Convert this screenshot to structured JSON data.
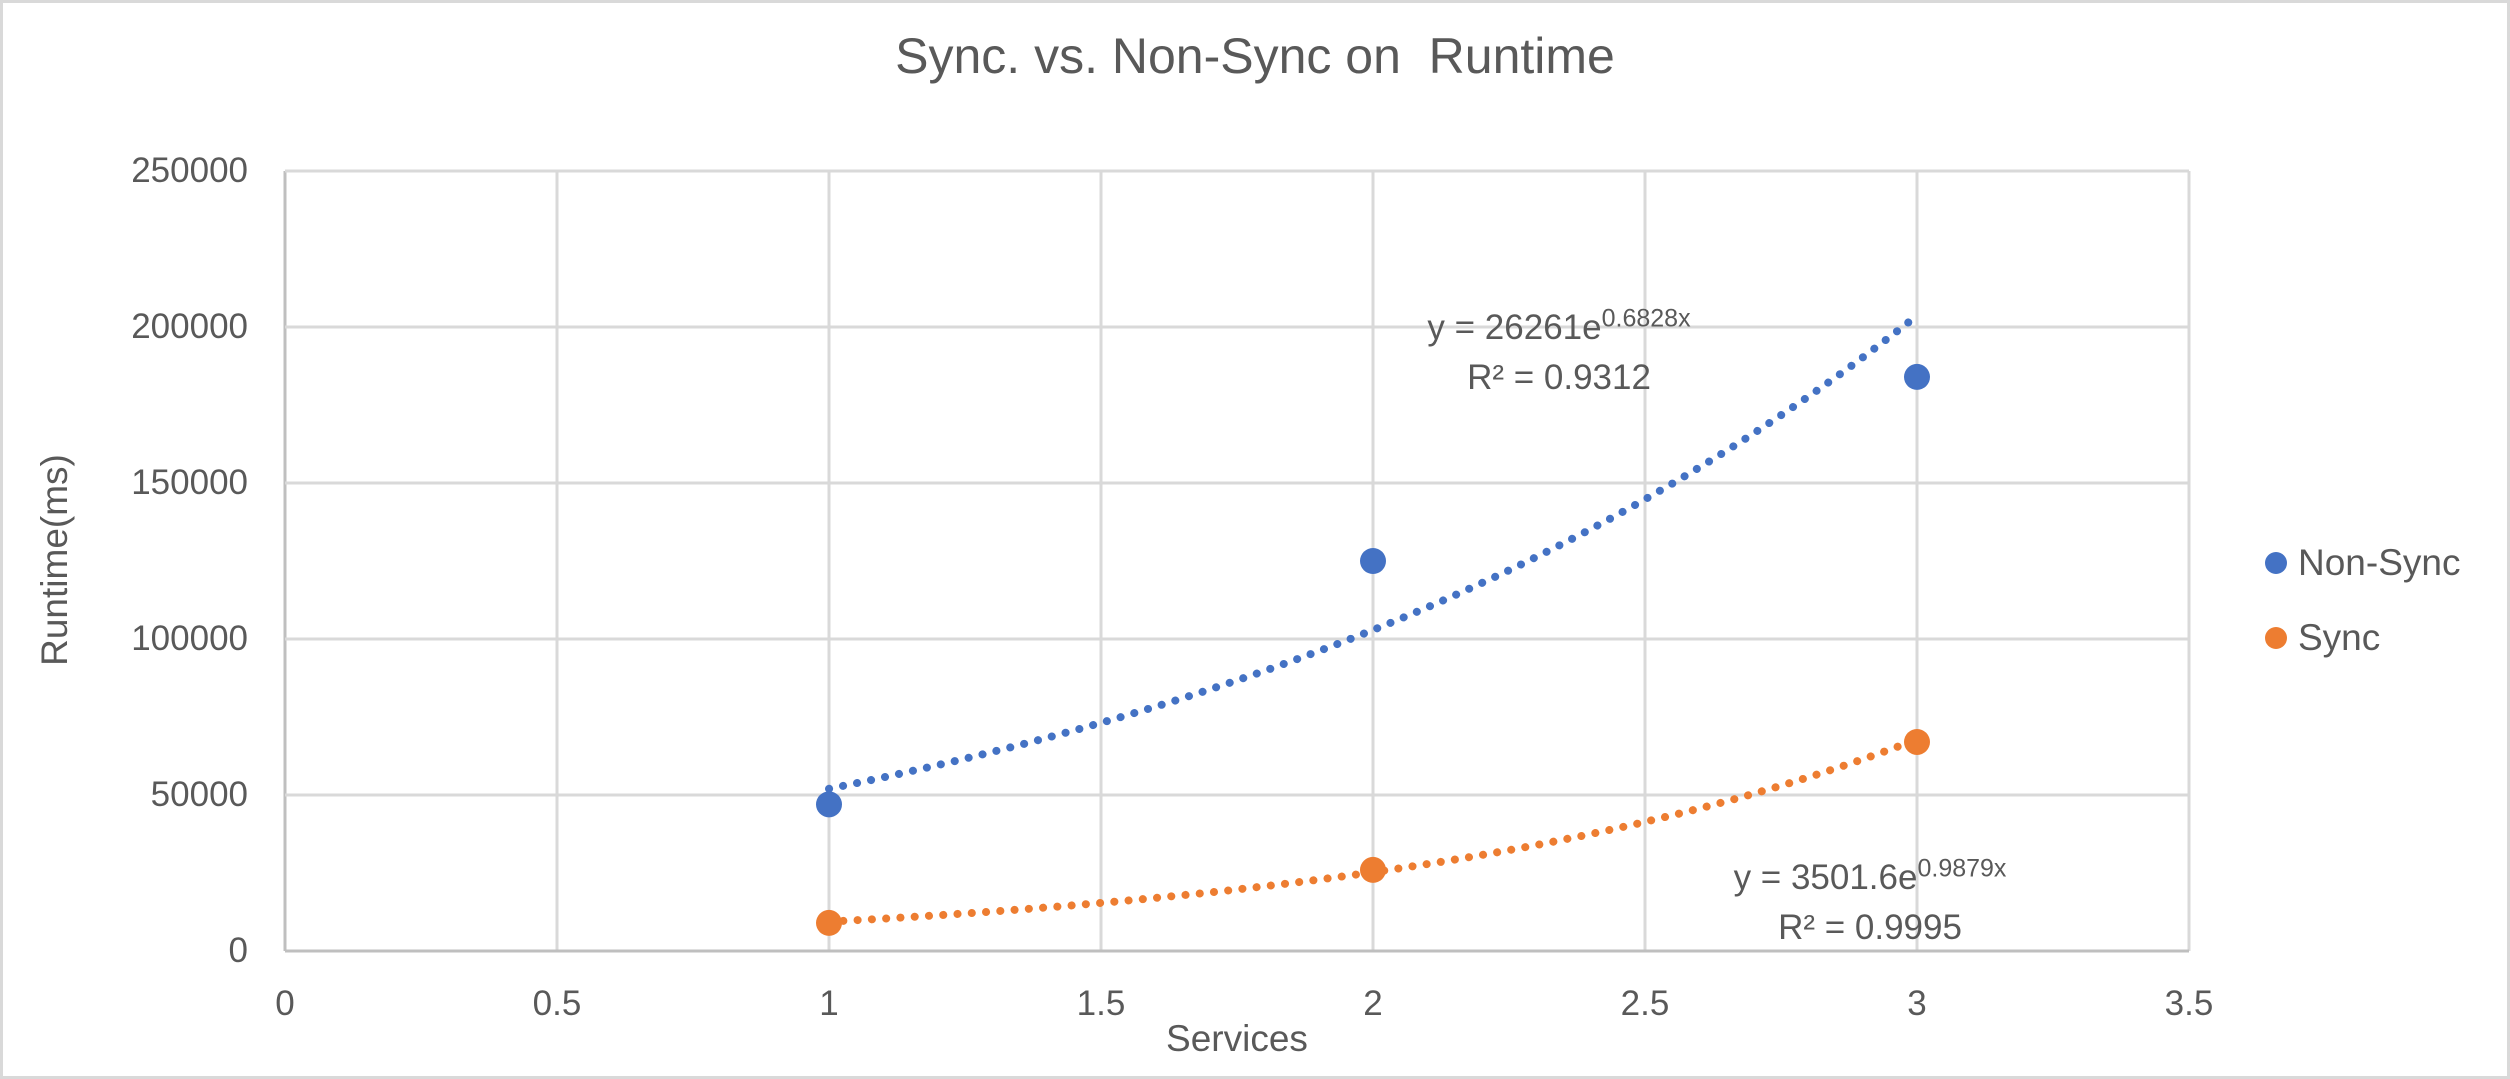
{
  "frame": {
    "background_color": "#ffffff",
    "border_color": "#d9d9d9"
  },
  "title": "Sync. vs. Non-Sync on  Runtime",
  "colors": {
    "text": "#595959",
    "gridline": "#d9d9d9",
    "axis_line": "#bfbfbf",
    "non_sync": "#4472c4",
    "sync": "#ed7d31"
  },
  "legend": {
    "position": "right",
    "items": [
      {
        "label": "Non-Sync",
        "color": "#4472c4",
        "marker": "circle"
      },
      {
        "label": "Sync",
        "color": "#ed7d31",
        "marker": "circle"
      }
    ]
  },
  "chart_data": {
    "type": "scatter",
    "title": "Sync. vs. Non-Sync on  Runtime",
    "xlabel": "Services",
    "ylabel": "Runtime(ms)",
    "xlim": [
      0,
      3.5
    ],
    "ylim": [
      0,
      250000
    ],
    "x_ticks": [
      "0",
      "0.5",
      "1",
      "1.5",
      "2",
      "2.5",
      "3",
      "3.5"
    ],
    "x_tick_values": [
      0,
      0.5,
      1,
      1.5,
      2,
      2.5,
      3,
      3.5
    ],
    "y_ticks": [
      "0",
      "50000",
      "100000",
      "150000",
      "200000",
      "250000"
    ],
    "y_tick_values": [
      0,
      50000,
      100000,
      150000,
      200000,
      250000
    ],
    "grid": true,
    "legend_position": "right",
    "x": [
      1,
      2,
      3
    ],
    "series": [
      {
        "name": "Non-Sync",
        "color": "#4472c4",
        "values": [
          47000,
          125000,
          184000
        ],
        "trendline": {
          "type": "exponential",
          "style": "dotted",
          "a": 26261,
          "b": 0.6828,
          "x_range": [
            1,
            3
          ],
          "equation_prefix": "y = 26261e",
          "equation_exponent": "0.6828x",
          "r2": 0.9312,
          "r2_label": "R² = 0.9312"
        }
      },
      {
        "name": "Sync",
        "color": "#ed7d31",
        "values": [
          9000,
          26000,
          67000
        ],
        "trendline": {
          "type": "exponential",
          "style": "dotted",
          "a": 3501.6,
          "b": 0.9879,
          "x_range": [
            1,
            3
          ],
          "equation_prefix": "y = 3501.6e",
          "equation_exponent": "0.9879x",
          "r2": 0.9995,
          "r2_label": "R² = 0.9995"
        }
      }
    ]
  }
}
